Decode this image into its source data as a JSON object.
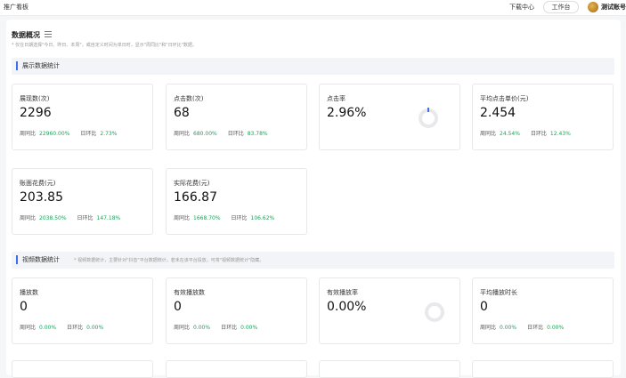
{
  "topbar": {
    "title": "推广看板",
    "download_center": "下载中心",
    "workspace": "工作台",
    "account": "测试账号"
  },
  "overview": {
    "title": "数据概况",
    "note": "* 仅在日期选择\"今日、昨日、本周\"，或自定义时间为单日时，显示\"周同比\"和\"日环比\"数据。"
  },
  "display_section": {
    "title": "展示数据统计",
    "cards": [
      {
        "label": "展现数(次)",
        "value": "2296",
        "wow_label": "周同比",
        "wow": "22960.00%",
        "dod_label": "日环比",
        "dod": "2.73%"
      },
      {
        "label": "点击数(次)",
        "value": "68",
        "wow_label": "周同比",
        "wow": "680.00%",
        "dod_label": "日环比",
        "dod": "83.78%"
      },
      {
        "label": "点击率",
        "value": "2.96%",
        "ctr_fraction": 0.0296
      },
      {
        "label": "平均点击单价(元)",
        "value": "2.454",
        "wow_label": "周同比",
        "wow": "24.54%",
        "dod_label": "日环比",
        "dod": "12.43%"
      },
      {
        "label": "账面花费(元)",
        "value": "203.85",
        "wow_label": "周同比",
        "wow": "2038.50%",
        "dod_label": "日环比",
        "dod": "147.18%"
      },
      {
        "label": "实际花费(元)",
        "value": "166.87",
        "wow_label": "周同比",
        "wow": "1668.70%",
        "dod_label": "日环比",
        "dod": "106.62%"
      }
    ]
  },
  "video_section": {
    "title": "视频数据统计",
    "note": "* 视频数据统计，主要针对\"抖音\"平台数据统计，若未在该平台投放，可将\"视频数据统计\"隐藏。",
    "cards": [
      {
        "label": "播放数",
        "value": "0",
        "wow_label": "周同比",
        "wow": "0.00%",
        "dod_label": "日环比",
        "dod": "0.00%"
      },
      {
        "label": "有效播放数",
        "value": "0",
        "wow_label": "周同比",
        "wow": "0.00%",
        "dod_label": "日环比",
        "dod": "0.00%"
      },
      {
        "label": "有效播放率",
        "value": "0.00%",
        "rate_fraction": 0
      },
      {
        "label": "平均播放时长",
        "value": "0",
        "wow_label": "周同比",
        "wow": "0.00%",
        "dod_label": "日环比",
        "dod": "0.00%"
      }
    ]
  },
  "colors": {
    "accent": "#3d6df2",
    "up": "#19a55a"
  }
}
